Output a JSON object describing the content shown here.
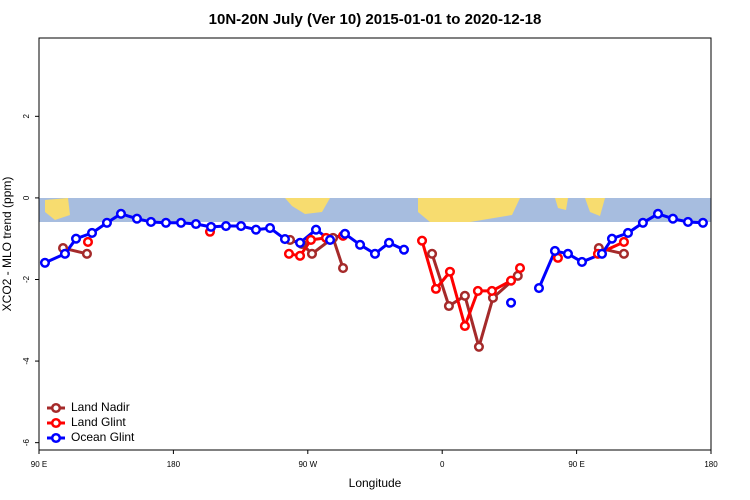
{
  "chart_data": {
    "type": "line",
    "title": "10N-20N July (Ver 10)   2015-01-01 to 2020-12-18",
    "x_label": "Longitude",
    "y_label": "XCO2 - MLO trend (ppm)",
    "xlim": [
      90,
      540
    ],
    "xticks": [
      {
        "value": 90,
        "label": "90 E"
      },
      180,
      {
        "value": 270,
        "label": "90 W"
      },
      {
        "value": 360,
        "label": "0"
      },
      {
        "value": 450,
        "label": "90 E"
      },
      {
        "value": 540,
        "label": "180"
      }
    ],
    "ylim": [
      -6.18,
      3.92
    ],
    "yticks": [
      -6,
      -4,
      -2,
      0,
      2
    ],
    "legend": "bottom-left",
    "series": [
      {
        "name": "Land Nadir",
        "color": "#a52a2a",
        "x": [
          106.1,
          122.1,
          null,
          258.1,
          266.1,
          272.8,
          286.9,
          293.6,
          null,
          353.2,
          364.5,
          375.2,
          384.6,
          394.0,
          410.6,
          null,
          464.9,
          481.7
        ],
        "values": [
          -1.23,
          -1.37,
          null,
          -1.03,
          -1.13,
          -1.37,
          -0.98,
          -1.72,
          null,
          -1.37,
          -2.65,
          -2.4,
          -3.65,
          -2.45,
          -1.91,
          null,
          -1.23,
          -1.37
        ]
      },
      {
        "name": "Land Glint",
        "color": "#ff0000",
        "x": [
          122.8,
          null,
          204.5,
          null,
          257.4,
          264.8,
          272.1,
          282.2,
          293.6,
          null,
          346.5,
          355.8,
          365.2,
          375.2,
          383.9,
          393.3,
          406.1,
          412.1,
          null,
          437.5,
          null,
          464.3,
          481.7
        ],
        "values": [
          -1.08,
          null,
          -0.83,
          null,
          -1.37,
          -1.42,
          -1.03,
          -0.98,
          -0.93,
          null,
          -1.05,
          -2.23,
          -1.81,
          -3.14,
          -2.28,
          -2.28,
          -2.03,
          -1.72,
          null,
          -1.47,
          null,
          -1.37,
          -1.08
        ]
      },
      {
        "name": "Ocean Glint",
        "color": "#0000ff",
        "x": [
          94.0,
          107.4,
          114.8,
          125.5,
          135.5,
          144.9,
          155.6,
          165.0,
          175.0,
          185.1,
          195.1,
          205.2,
          215.2,
          225.3,
          235.3,
          244.7,
          254.7,
          264.8,
          275.5,
          284.9,
          294.9,
          305.0,
          315.0,
          324.4,
          334.4,
          null,
          406.1,
          null,
          424.8,
          435.5,
          444.2,
          453.6,
          467.0,
          473.7,
          484.4,
          494.4,
          504.5,
          514.5,
          524.6,
          534.6
        ],
        "values": [
          -1.59,
          -1.37,
          -1.0,
          -0.86,
          -0.61,
          -0.39,
          -0.51,
          -0.59,
          -0.61,
          -0.61,
          -0.64,
          -0.71,
          -0.69,
          -0.69,
          -0.78,
          -0.74,
          -1.01,
          -1.1,
          -0.78,
          -1.03,
          -0.88,
          -1.15,
          -1.37,
          -1.1,
          -1.27,
          null,
          -2.57,
          null,
          -2.21,
          -1.3,
          -1.37,
          -1.57,
          -1.37,
          -1.0,
          -0.86,
          -0.61,
          -0.39,
          -0.51,
          -0.59,
          -0.61
        ]
      }
    ]
  }
}
